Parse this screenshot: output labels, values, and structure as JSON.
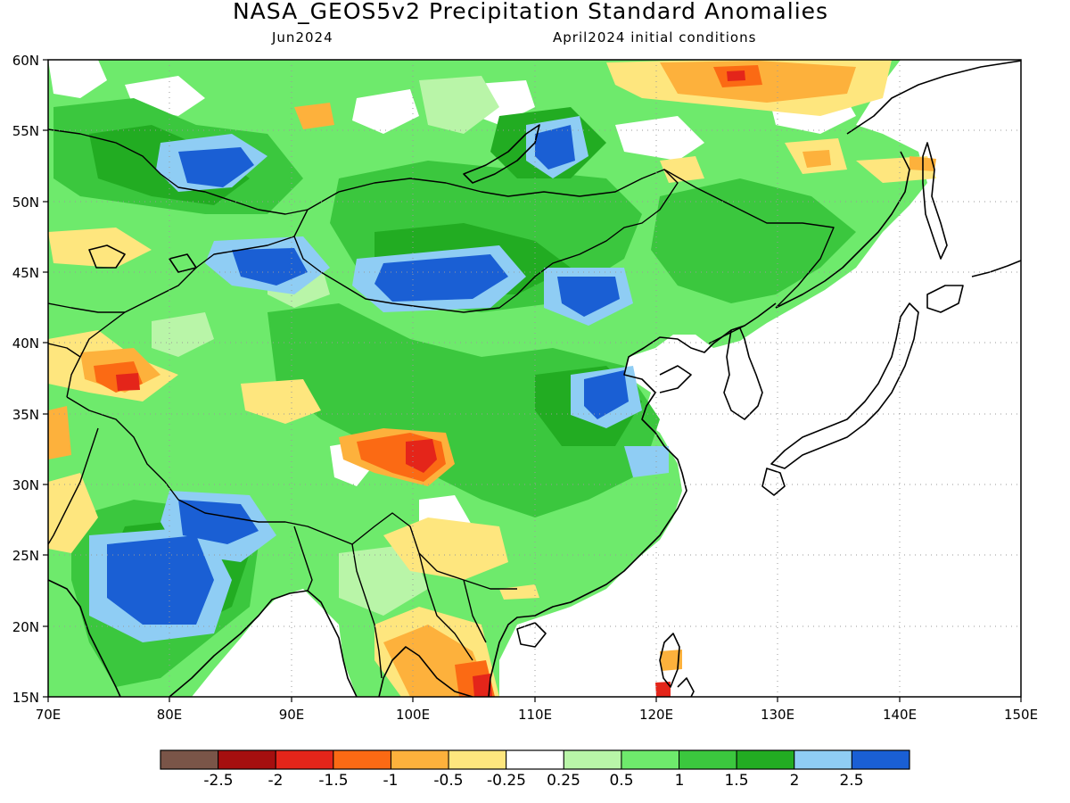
{
  "header": {
    "title": "NASA_GEOS5v2 Precipitation Standard Anomalies",
    "valid_month": "Jun2024",
    "initial_conditions": "April2024 initial conditions"
  },
  "map": {
    "lon_range": [
      70,
      150
    ],
    "lat_range": [
      15,
      60
    ],
    "lon_ticks": [
      "70E",
      "80E",
      "90E",
      "100E",
      "110E",
      "120E",
      "130E",
      "140E",
      "150E"
    ],
    "lat_ticks": [
      "60N",
      "55N",
      "50N",
      "45N",
      "40N",
      "35N",
      "30N",
      "25N",
      "20N",
      "15N"
    ],
    "gridlines": "dotted"
  },
  "colorbar": {
    "colors": [
      "#7a5548",
      "#a50f0f",
      "#e4251a",
      "#fb6a14",
      "#fdb13c",
      "#fee67e",
      "#ffffff",
      "#b9f5a8",
      "#6eea6c",
      "#3bc73e",
      "#22ac22",
      "#8fcdf4",
      "#1a5fd4"
    ],
    "labels": [
      "-2.5",
      "-2",
      "-1.5",
      "-1",
      "-0.5",
      "-0.25",
      "0.25",
      "0.5",
      "1",
      "1.5",
      "2",
      "2.5"
    ]
  }
}
